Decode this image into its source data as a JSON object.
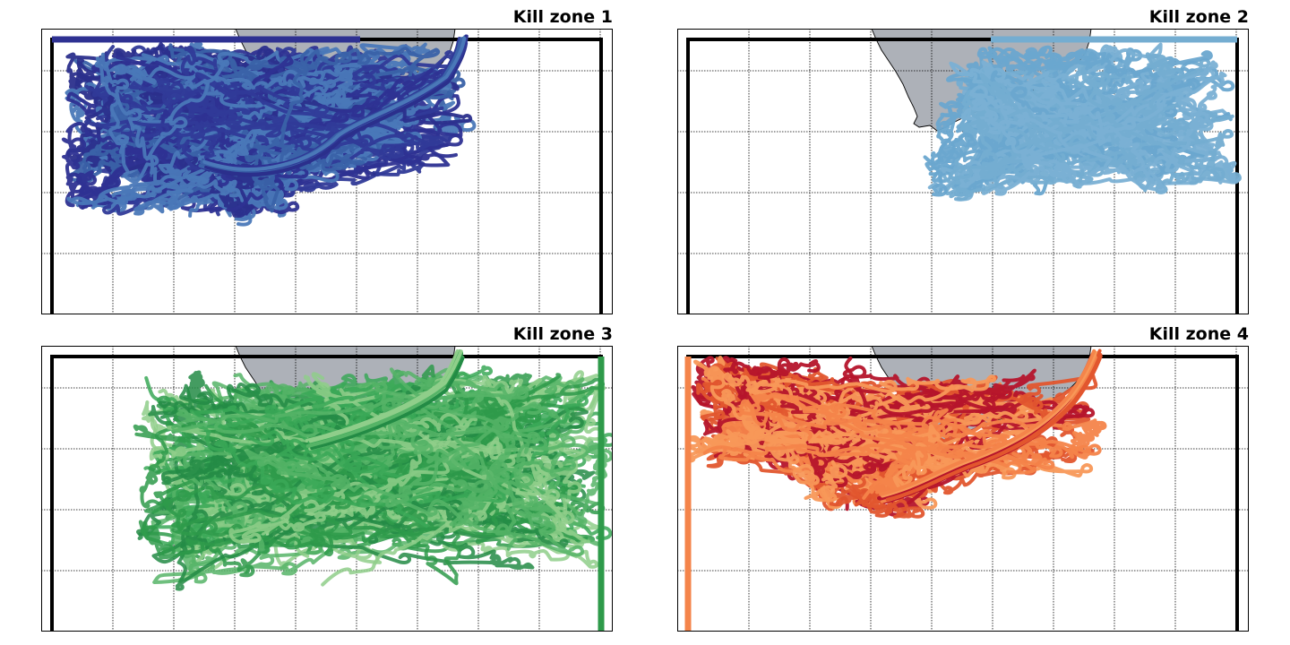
{
  "panels": [
    {
      "title": "Kill zone 1",
      "kill_edge": "top-left",
      "colors": [
        "#2e3192",
        "#303a98",
        "#3a62a8",
        "#4a78b8",
        "#2b2f8c"
      ],
      "edge_color": "#2e3192",
      "region": "broad cloud south of the cape, extending along the coast to the east"
    },
    {
      "title": "Kill zone 2",
      "kill_edge": "top-right",
      "colors": [
        "#74add1",
        "#7ab0d4",
        "#6aa6cf"
      ],
      "edge_color": "#74add1",
      "region": "eastern cloud south-east of the coastline"
    },
    {
      "title": "Kill zone 3",
      "kill_edge": "right",
      "colors": [
        "#2e9a4a",
        "#3aa857",
        "#56b467",
        "#8fce8a",
        "#238b45"
      ],
      "edge_color": "#2e9a4a",
      "region": "wide band spanning the middle of the domain to the eastern edge"
    },
    {
      "title": "Kill zone 4",
      "kill_edge": "left",
      "colors": [
        "#f4844a",
        "#e2562e",
        "#b5142b",
        "#f89858"
      ],
      "edge_color": "#f4844a",
      "region": "band from the western edge along the coast to the north-east"
    }
  ]
}
